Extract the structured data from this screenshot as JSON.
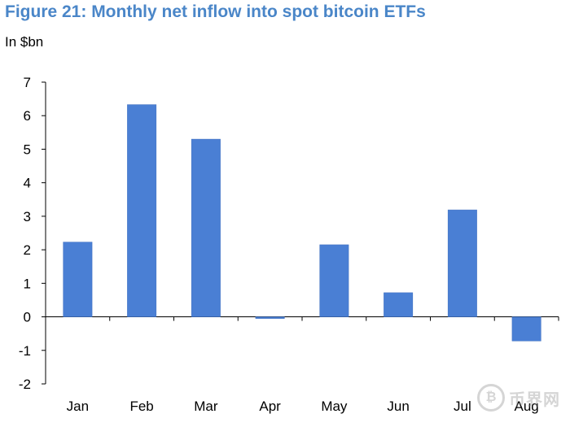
{
  "header": {
    "title": "Figure 21: Monthly net inflow into spot bitcoin ETFs",
    "unit": "In $bn"
  },
  "watermark": {
    "icon": "bitcoin-coin-icon",
    "text": "币界网"
  },
  "colors": {
    "bar": "#4a7fd4",
    "title": "#4a86c8",
    "axis": "#000000"
  },
  "chart_data": {
    "type": "bar",
    "title": "Figure 21: Monthly net inflow into spot bitcoin ETFs",
    "ylabel": "In $bn",
    "xlabel": "",
    "categories": [
      "Jan",
      "Feb",
      "Mar",
      "Apr",
      "May",
      "Jun",
      "Jul",
      "Aug"
    ],
    "values": [
      2.23,
      6.33,
      5.3,
      -0.05,
      2.15,
      0.72,
      3.19,
      -0.72
    ],
    "ylim": [
      -2,
      7
    ],
    "yticks": [
      -2,
      -1,
      0,
      1,
      2,
      3,
      4,
      5,
      6,
      7
    ],
    "grid": false,
    "legend": "none"
  }
}
